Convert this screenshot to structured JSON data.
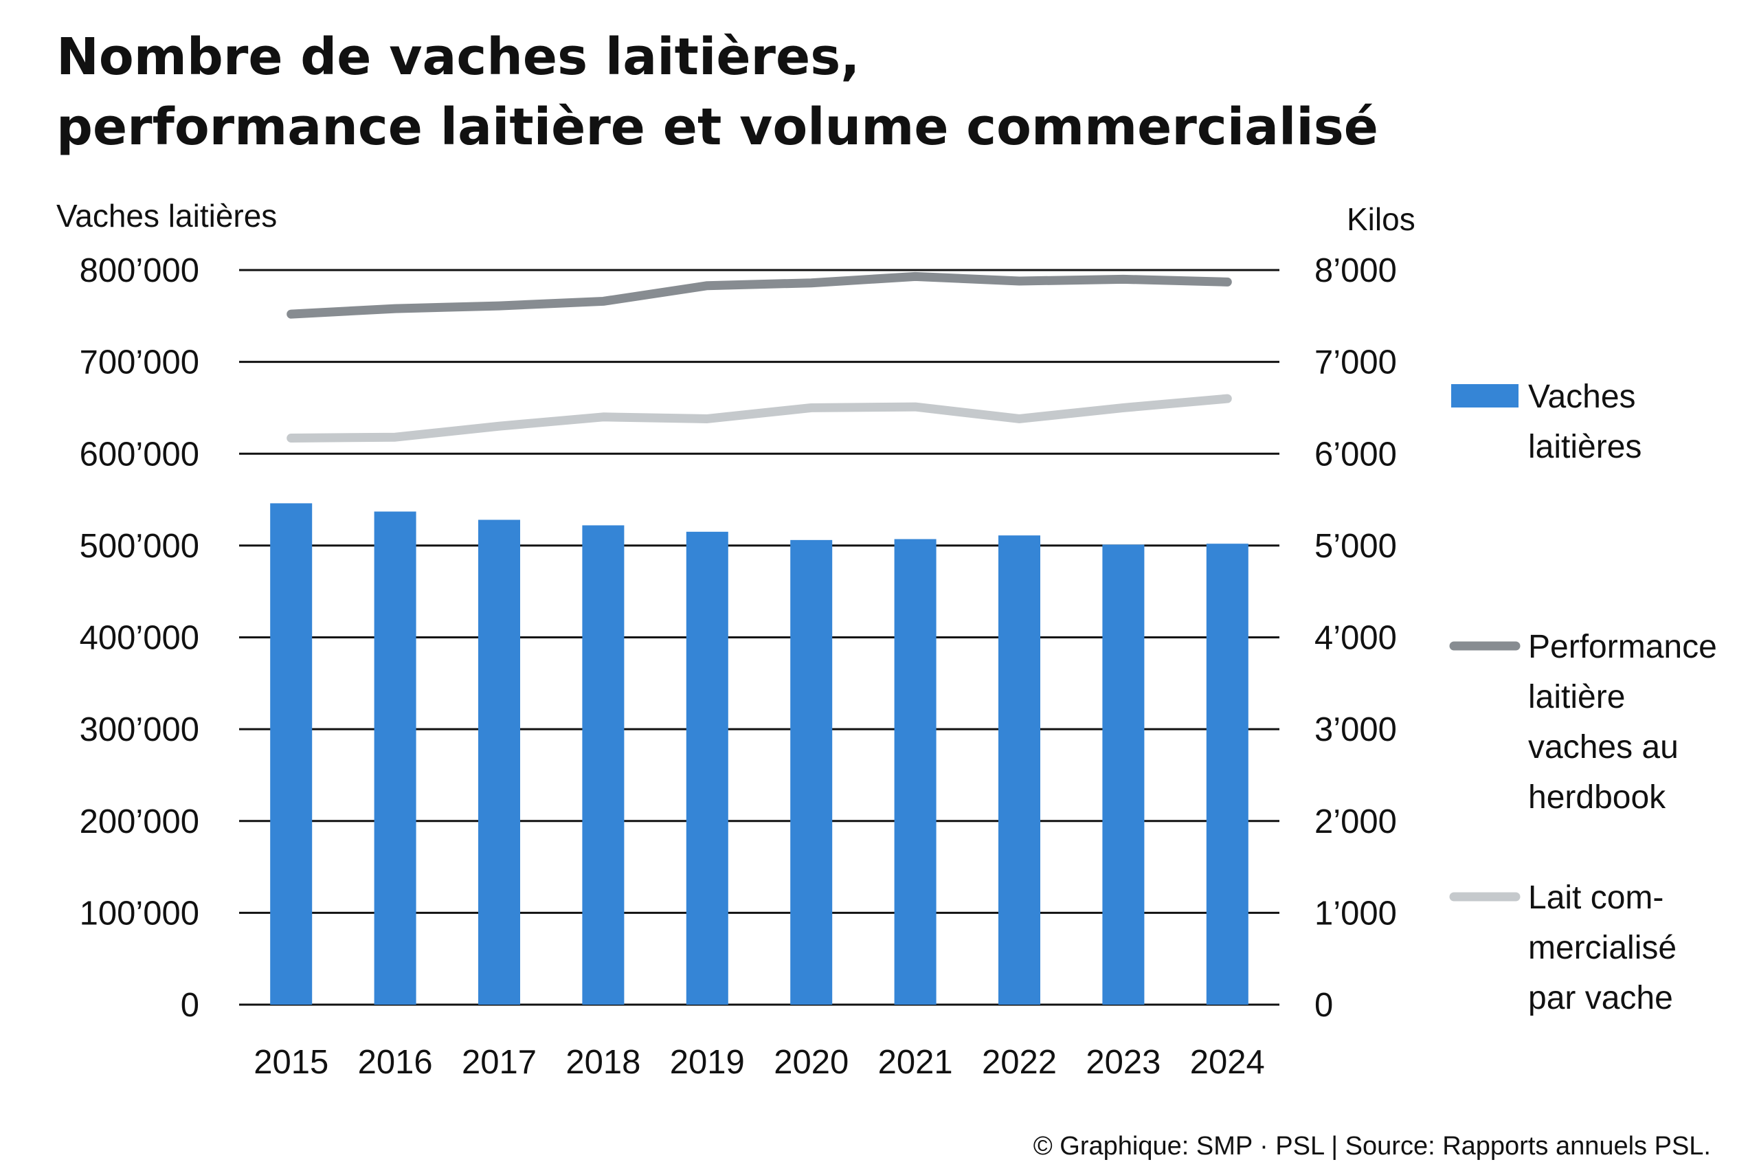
{
  "chart_data": {
    "type": "bar",
    "title": [
      "Nombre de vaches laitières,",
      "performance laitière et volume commercialisé"
    ],
    "ylabel_left": "Vaches laitières",
    "ylabel_right": "Kilos",
    "categories": [
      "2015",
      "2016",
      "2017",
      "2018",
      "2019",
      "2020",
      "2021",
      "2022",
      "2023",
      "2024"
    ],
    "ylim_left": [
      0,
      800000
    ],
    "ylim_right": [
      0,
      8000
    ],
    "yticks_left": [
      "0",
      "100’000",
      "200’000",
      "300’000",
      "400’000",
      "500’000",
      "600’000",
      "700’000",
      "800’000"
    ],
    "yticks_right": [
      "0",
      "1’000",
      "2’000",
      "3’000",
      "4’000",
      "5’000",
      "6’000",
      "7’000",
      "8’000"
    ],
    "grid": true,
    "series": [
      {
        "name": "Vaches laitières",
        "legend_lines": [
          "Vaches",
          "laitières"
        ],
        "kind": "bar",
        "axis": "left",
        "color": "#3585d6",
        "values": [
          546000,
          537000,
          528000,
          522000,
          515000,
          506000,
          507000,
          511000,
          501000,
          502000
        ]
      },
      {
        "name": "Performance laitière vaches au herdbook",
        "legend_lines": [
          "Performance",
          "laitière",
          "vaches au",
          "herdbook"
        ],
        "kind": "line",
        "axis": "right",
        "color": "#878c91",
        "values": [
          7520,
          7580,
          7610,
          7660,
          7830,
          7860,
          7930,
          7880,
          7900,
          7870
        ]
      },
      {
        "name": "Lait commercialisé par vache",
        "legend_lines": [
          "Lait com-",
          "mercialisé",
          "par vache"
        ],
        "kind": "line",
        "axis": "right",
        "color": "#c5c9cc",
        "values": [
          6170,
          6180,
          6300,
          6400,
          6380,
          6500,
          6510,
          6380,
          6500,
          6600
        ]
      }
    ],
    "legend_position": "right",
    "source": "© Graphique: SMP · PSL | Source: Rapports annuels PSL."
  }
}
